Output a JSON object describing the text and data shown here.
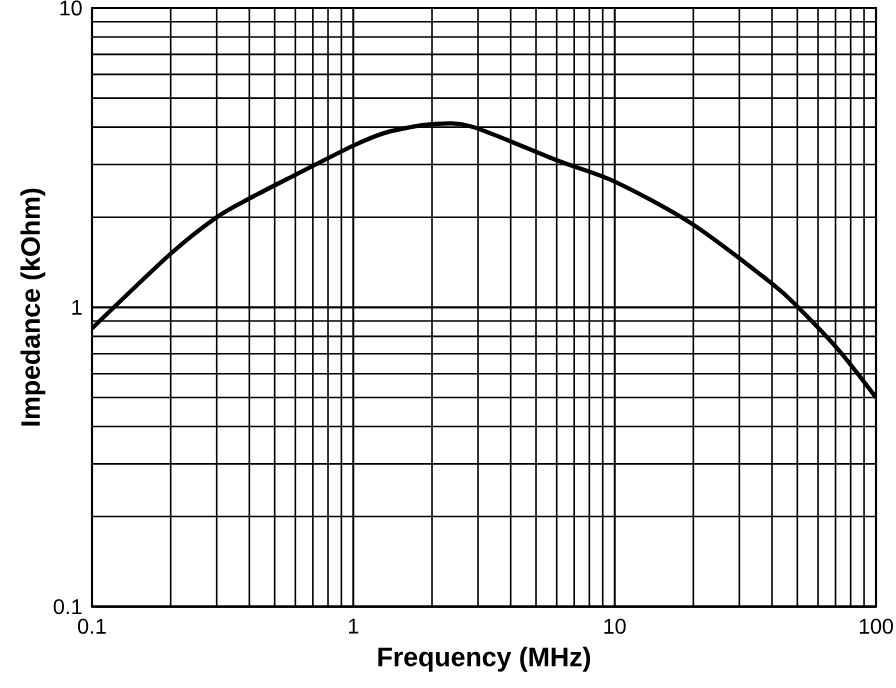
{
  "chart_data": {
    "type": "line",
    "xlabel": "Frequency (MHz)",
    "ylabel": "Impedance (kOhm)",
    "x": [
      0.1,
      0.2,
      0.3,
      0.4,
      0.6,
      1,
      1.35,
      2,
      2.85,
      6,
      10,
      19.6,
      40,
      51,
      72,
      100
    ],
    "series": [
      {
        "color": "#000000",
        "values": [
          0.85,
          1.51,
          2.0,
          2.31,
          2.77,
          3.47,
          3.85,
          4.09,
          4.01,
          3.1,
          2.63,
          1.91,
          1.2,
          0.99,
          0.72,
          0.5
        ]
      }
    ],
    "xlim": [
      0.1,
      100
    ],
    "ylim": [
      0.1,
      10
    ],
    "xticks": [
      0.1,
      1,
      10,
      100
    ],
    "yticks": [
      0.1,
      1,
      10
    ],
    "log": "xy",
    "grid": true,
    "marker": "none"
  }
}
